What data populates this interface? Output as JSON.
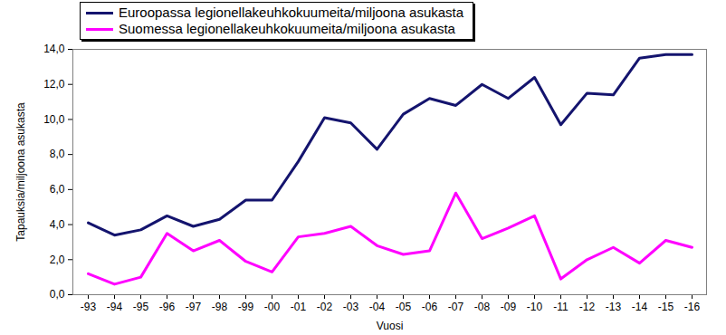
{
  "chart_data": {
    "type": "line",
    "xlabel": "Vuosi",
    "ylabel": "Tapauksia/miljoona asukasta",
    "categories": [
      "-93",
      "-94",
      "-95",
      "-96",
      "-97",
      "-98",
      "-99",
      "-00",
      "-01",
      "-02",
      "-03",
      "-04",
      "-05",
      "-06",
      "-07",
      "-08",
      "-09",
      "-10",
      "-11",
      "-12",
      "-13",
      "-14",
      "-15",
      "-16"
    ],
    "series": [
      {
        "name": "Euroopassa legionellakeuhkokuumeita/miljoona asukasta",
        "color": "#14146e",
        "values": [
          4.1,
          3.4,
          3.7,
          4.5,
          3.9,
          4.3,
          5.4,
          5.4,
          7.6,
          10.1,
          9.8,
          8.3,
          10.3,
          11.2,
          10.8,
          12.0,
          11.2,
          12.4,
          9.7,
          11.5,
          11.4,
          13.5,
          13.7,
          13.7
        ]
      },
      {
        "name": "Suomessa legionellakeuhkokuumeita/miljoona asukasta",
        "color": "#ff00ff",
        "values": [
          1.2,
          0.6,
          1.0,
          3.5,
          2.5,
          3.1,
          1.9,
          1.3,
          3.3,
          3.5,
          3.9,
          2.8,
          2.3,
          2.5,
          5.8,
          3.2,
          3.8,
          4.5,
          0.9,
          2.0,
          2.7,
          1.8,
          3.1,
          2.7
        ]
      }
    ],
    "ylim": [
      0,
      14
    ],
    "yticks": [
      {
        "value": 0,
        "label": "0,0"
      },
      {
        "value": 2,
        "label": "2,0"
      },
      {
        "value": 4,
        "label": "4,0"
      },
      {
        "value": 6,
        "label": "6,0"
      },
      {
        "value": 8,
        "label": "8,0"
      },
      {
        "value": 10,
        "label": "10,0"
      },
      {
        "value": 12,
        "label": "12,0"
      },
      {
        "value": 14,
        "label": "14,0"
      }
    ],
    "grid": false,
    "legend": "top"
  }
}
